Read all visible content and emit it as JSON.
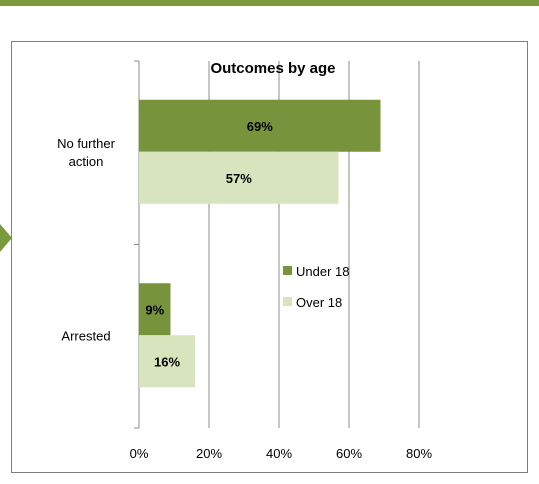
{
  "chart_data": {
    "type": "bar",
    "orientation": "horizontal",
    "title": "Outcomes by age",
    "categories": [
      "No further action",
      "Arrested"
    ],
    "category_lines": [
      [
        "No further",
        "action"
      ],
      [
        "Arrested"
      ]
    ],
    "series": [
      {
        "name": "Under 18",
        "values": [
          69,
          9
        ],
        "labels": [
          "69%",
          "9%"
        ],
        "color": "#77933c"
      },
      {
        "name": "Over 18",
        "values": [
          57,
          16
        ],
        "labels": [
          "57%",
          "16%"
        ],
        "color": "#d7e4bd"
      }
    ],
    "xlim": [
      0,
      80
    ],
    "xticks": [
      0,
      20,
      40,
      60,
      80
    ],
    "xtick_labels": [
      "0%",
      "20%",
      "40%",
      "60%",
      "80%"
    ],
    "xlabel": "",
    "ylabel": "",
    "grid": true,
    "legend": "right-center"
  },
  "colors": {
    "accent": "#7a9a3c",
    "frame": "#7f7f7f",
    "gridline": "#8c8c8c"
  }
}
